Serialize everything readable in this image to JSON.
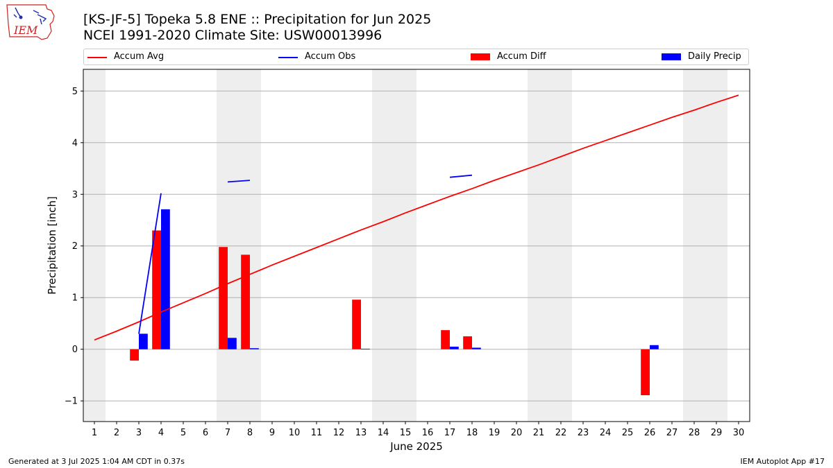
{
  "header": {
    "title_line1": "[KS-JF-5] Topeka 5.8 ENE :: Precipitation for Jun 2025",
    "title_line2": "NCEI 1991-2020 Climate Site: USW00013996"
  },
  "logo": {
    "text": "IEM",
    "color": "#cc2222"
  },
  "footer": {
    "left": "Generated at 3 Jul 2025 1:04 AM CDT in 0.37s",
    "right": "IEM Autoplot App #17"
  },
  "chart_data": {
    "type": "bar",
    "xlabel": "June 2025",
    "ylabel": "Precipitation [inch]",
    "ylim": [
      -1.4,
      5.42
    ],
    "xlim": [
      0.5,
      30.5
    ],
    "yticks": [
      -1,
      0,
      1,
      2,
      3,
      4,
      5
    ],
    "ytick_labels": [
      "−1",
      "0",
      "1",
      "2",
      "3",
      "4",
      "5"
    ],
    "xticks": [
      1,
      2,
      3,
      4,
      5,
      6,
      7,
      8,
      9,
      10,
      11,
      12,
      13,
      14,
      15,
      16,
      17,
      18,
      19,
      20,
      21,
      22,
      23,
      24,
      25,
      26,
      27,
      28,
      29,
      30
    ],
    "grid": "horizontal",
    "legend_position": "top",
    "weekend_shading": [
      [
        0.5,
        1.5
      ],
      [
        6.5,
        8.5
      ],
      [
        13.5,
        15.5
      ],
      [
        20.5,
        22.5
      ],
      [
        27.5,
        29.5
      ]
    ],
    "colors": {
      "accum_avg": "#ff0000",
      "accum_obs": "#0000ff",
      "accum_diff": "#ff0000",
      "daily_precip": "#0000ff",
      "shade": "#eeeeee",
      "grid": "#b0b0b0"
    },
    "series": [
      {
        "name": "Accum Avg",
        "kind": "line",
        "x": [
          1,
          2,
          3,
          4,
          5,
          6,
          7,
          8,
          9,
          10,
          11,
          12,
          13,
          14,
          15,
          16,
          17,
          18,
          19,
          20,
          21,
          22,
          23,
          24,
          25,
          26,
          27,
          28,
          29,
          30
        ],
        "values": [
          0.18,
          0.35,
          0.53,
          0.72,
          0.9,
          1.08,
          1.27,
          1.45,
          1.63,
          1.8,
          1.97,
          2.14,
          2.31,
          2.47,
          2.64,
          2.8,
          2.96,
          3.11,
          3.27,
          3.42,
          3.57,
          3.73,
          3.89,
          4.04,
          4.19,
          4.34,
          4.49,
          4.63,
          4.78,
          4.92
        ]
      },
      {
        "name": "Accum Obs",
        "kind": "line",
        "segments": [
          {
            "x": [
              3,
              4
            ],
            "values": [
              0.3,
              3.02
            ]
          },
          {
            "x": [
              7,
              8
            ],
            "values": [
              3.24,
              3.27
            ]
          },
          {
            "x": [
              17,
              18
            ],
            "values": [
              3.33,
              3.37
            ]
          }
        ]
      },
      {
        "name": "Accum Diff",
        "kind": "bar",
        "x": [
          3,
          4,
          7,
          8,
          13,
          17,
          18,
          26
        ],
        "values": [
          -0.22,
          2.3,
          1.98,
          1.83,
          0.96,
          0.37,
          0.25,
          -0.89
        ]
      },
      {
        "name": "Daily Precip",
        "kind": "bar",
        "x": [
          3,
          4,
          7,
          8,
          13,
          17,
          18,
          26
        ],
        "values": [
          0.3,
          2.71,
          0.22,
          0.02,
          0.01,
          0.05,
          0.03,
          0.08
        ]
      }
    ]
  }
}
